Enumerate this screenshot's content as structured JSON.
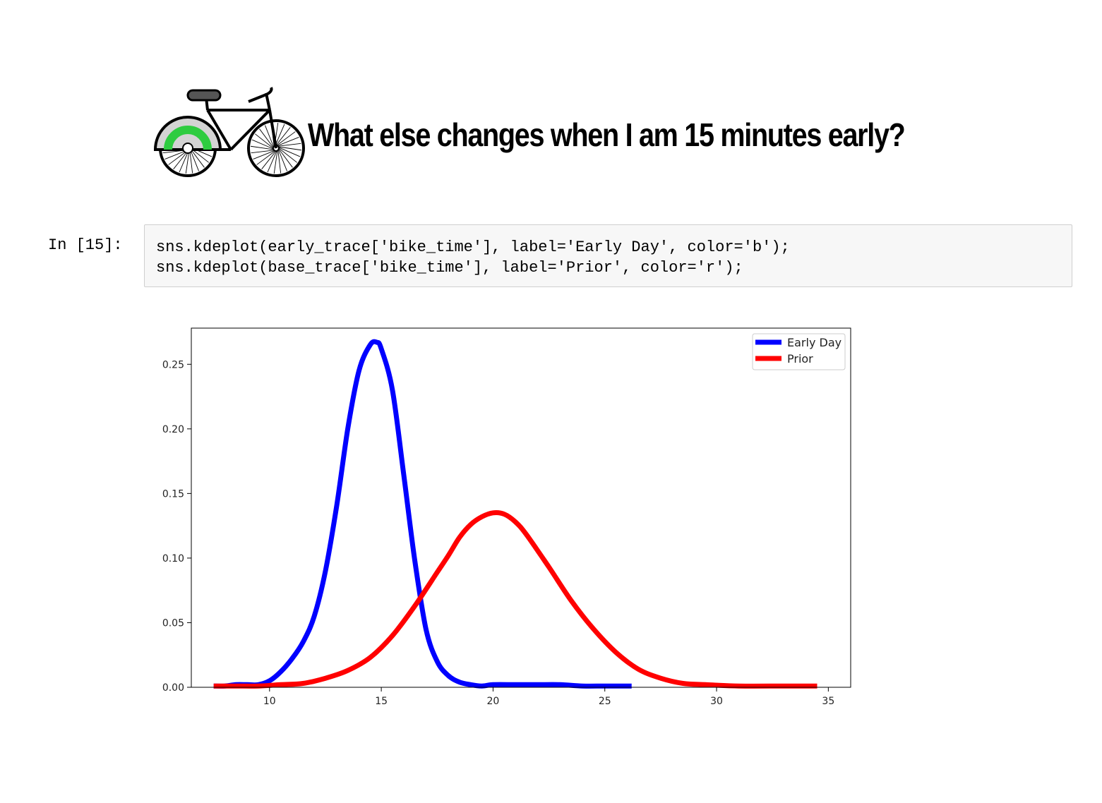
{
  "heading": {
    "text": "What else changes when I am 15 minutes early?",
    "icon": "bicycle-icon"
  },
  "cell": {
    "prompt": "In [15]:",
    "code_lines": [
      "sns.kdeplot(early_trace['bike_time'], label='Early Day', color='b');",
      "sns.kdeplot(base_trace['bike_time'], label='Prior', color='r');"
    ]
  },
  "chart_data": {
    "type": "line",
    "title": "",
    "xlabel": "",
    "ylabel": "",
    "xlim": [
      6.5,
      36
    ],
    "ylim": [
      0,
      0.278
    ],
    "xticks": [
      10,
      15,
      20,
      25,
      30,
      35
    ],
    "yticks": [
      0.0,
      0.05,
      0.1,
      0.15,
      0.2,
      0.25
    ],
    "xtick_labels": [
      "10",
      "15",
      "20",
      "25",
      "30",
      "35"
    ],
    "ytick_labels": [
      "0.00",
      "0.05",
      "0.10",
      "0.15",
      "0.20",
      "0.25"
    ],
    "grid": false,
    "legend_position": "top-right",
    "series": [
      {
        "name": "Early Day",
        "color": "#0000ff",
        "x": [
          7.5,
          8.0,
          8.5,
          9.0,
          9.5,
          10.0,
          10.5,
          11.0,
          11.5,
          12.0,
          12.5,
          13.0,
          13.5,
          14.0,
          14.5,
          14.8,
          15.0,
          15.5,
          16.0,
          16.5,
          17.0,
          17.5,
          18.0,
          18.5,
          19.0,
          19.5,
          20.0,
          21.0,
          22.0,
          23.0,
          24.0,
          25.0,
          26.2
        ],
        "y": [
          0.001,
          0.001,
          0.002,
          0.002,
          0.002,
          0.005,
          0.012,
          0.022,
          0.035,
          0.055,
          0.09,
          0.14,
          0.2,
          0.245,
          0.265,
          0.267,
          0.262,
          0.23,
          0.165,
          0.098,
          0.045,
          0.02,
          0.009,
          0.004,
          0.002,
          0.001,
          0.002,
          0.002,
          0.002,
          0.002,
          0.001,
          0.001,
          0.001
        ]
      },
      {
        "name": "Prior",
        "color": "#ff0000",
        "x": [
          7.5,
          8.5,
          9.5,
          10.5,
          11.5,
          12.5,
          13.5,
          14.5,
          15.5,
          16.5,
          17.5,
          18.0,
          18.5,
          19.0,
          19.5,
          20.0,
          20.5,
          21.0,
          21.5,
          22.5,
          23.5,
          24.5,
          25.5,
          26.5,
          27.5,
          28.5,
          29.5,
          31.0,
          33.0,
          34.5
        ],
        "y": [
          0.001,
          0.001,
          0.001,
          0.002,
          0.003,
          0.007,
          0.013,
          0.023,
          0.04,
          0.063,
          0.089,
          0.102,
          0.116,
          0.126,
          0.132,
          0.135,
          0.134,
          0.128,
          0.118,
          0.093,
          0.067,
          0.045,
          0.027,
          0.014,
          0.007,
          0.003,
          0.002,
          0.001,
          0.001,
          0.001
        ]
      }
    ]
  }
}
